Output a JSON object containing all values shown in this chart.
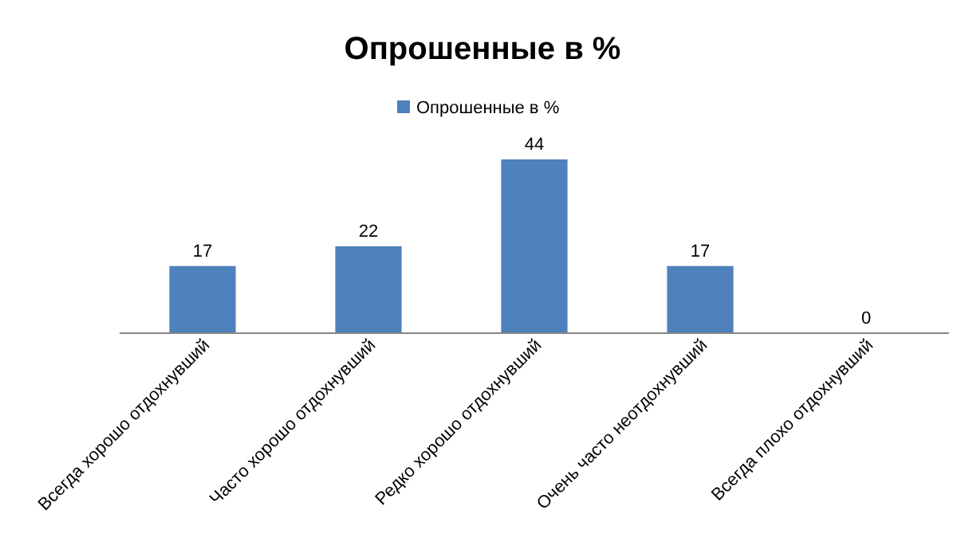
{
  "chart_data": {
    "type": "bar",
    "title": "Опрошенные в %",
    "categories": [
      "Всегда хорошо отдохнувший",
      "Часто хорошо отдохнувший",
      "Редко хорошо отдохнувший",
      "Очень часто неотдохнувший",
      "Всегда плохо отдохнувший"
    ],
    "series": [
      {
        "name": "Опрошенные в %",
        "color": "#4f81bd",
        "values": [
          17,
          22,
          44,
          17,
          0
        ]
      }
    ],
    "data_labels": true,
    "legend": "top"
  }
}
